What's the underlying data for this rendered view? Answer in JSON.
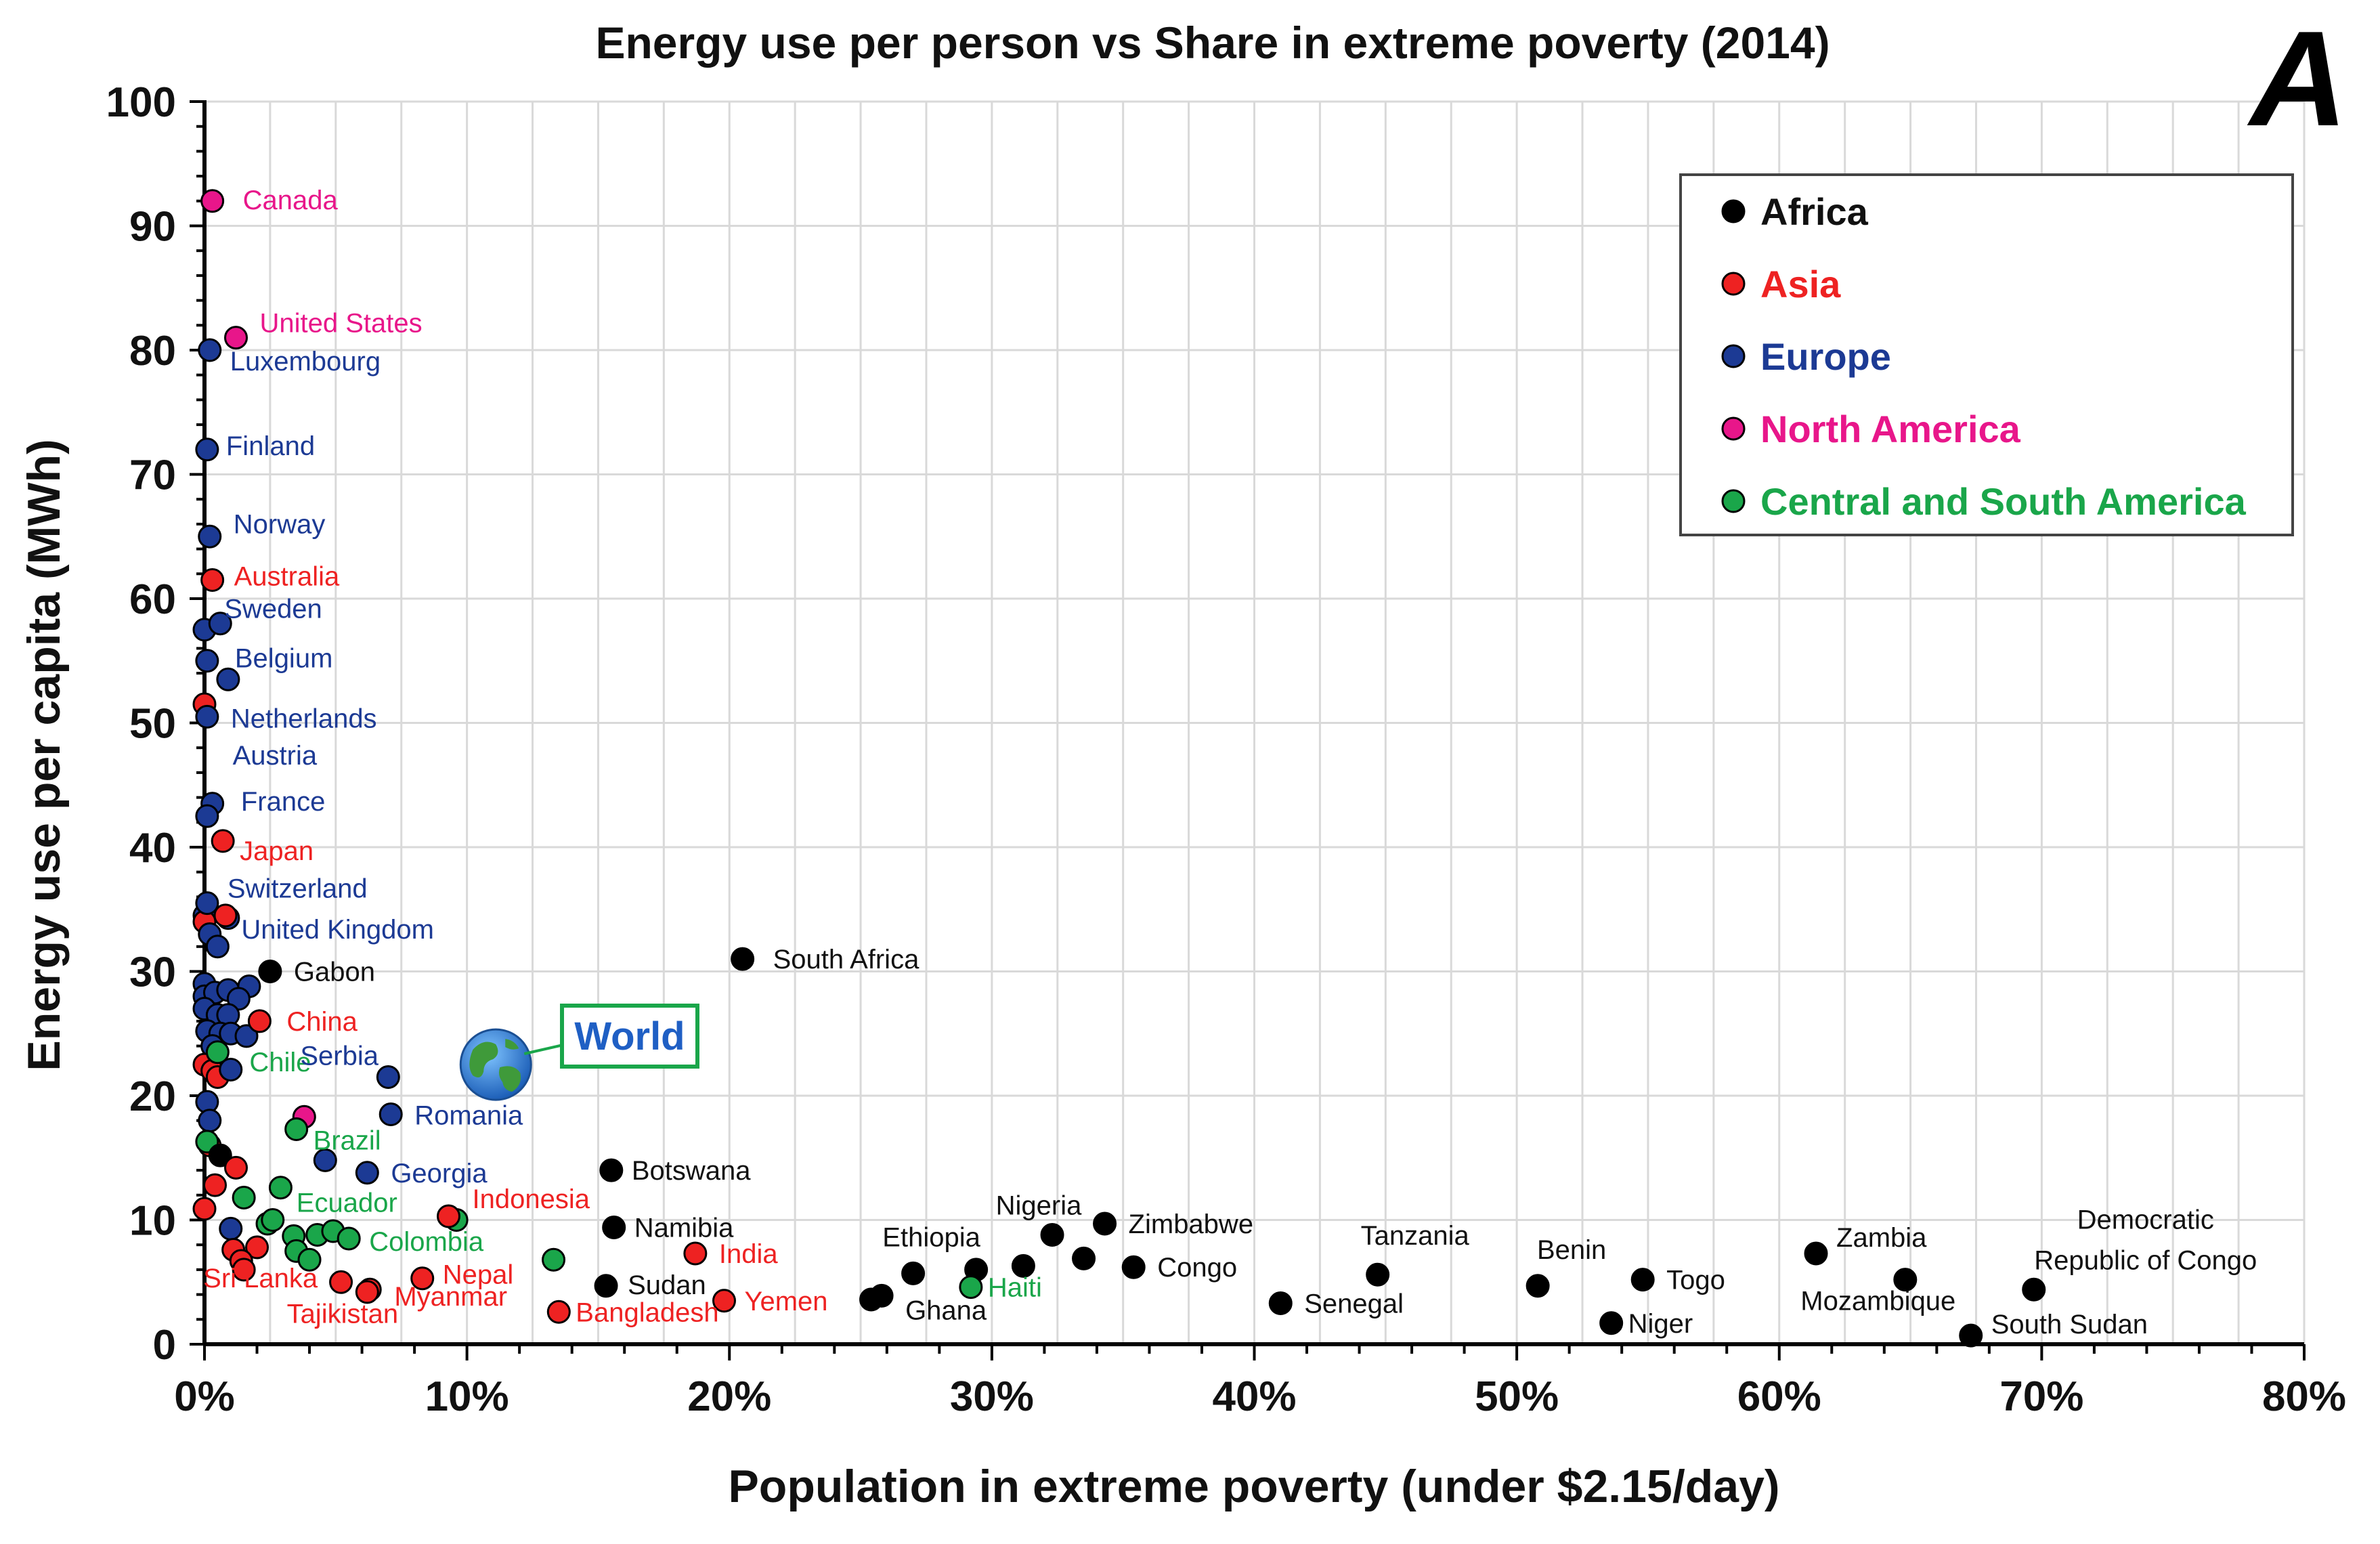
{
  "chart_data": {
    "type": "scatter",
    "title": "Energy use per person vs Share in extreme poverty (2014)",
    "panel_label": "A",
    "xlabel": "Population in extreme poverty (under $2.15/day)",
    "ylabel": "Energy use per capita (MWh)",
    "xlim": [
      0,
      80
    ],
    "ylim": [
      0,
      100
    ],
    "x_ticks": [
      "0%",
      "10%",
      "20%",
      "30%",
      "40%",
      "50%",
      "60%",
      "70%",
      "80%"
    ],
    "y_ticks": [
      "0",
      "10",
      "20",
      "30",
      "40",
      "50",
      "60",
      "70",
      "80",
      "90",
      "100"
    ],
    "grid": true,
    "legend_position": "top-right",
    "groups": [
      {
        "name": "Africa",
        "color": "#000000"
      },
      {
        "name": "Asia",
        "color": "#ee2222"
      },
      {
        "name": "Europe",
        "color": "#1c3a94"
      },
      {
        "name": "North America",
        "color": "#e8168a"
      },
      {
        "name": "Central and South America",
        "color": "#1aa64a"
      }
    ],
    "world": {
      "label": "World",
      "x": 11.1,
      "y": 22.5
    },
    "labeled_points": [
      {
        "label": "Canada",
        "group": "North America",
        "x": 0.3,
        "y": 92
      },
      {
        "label": "United States",
        "group": "North America",
        "x": 1.2,
        "y": 81
      },
      {
        "label": "Luxembourg",
        "group": "Europe",
        "x": 0.2,
        "y": 80
      },
      {
        "label": "Finland",
        "group": "Europe",
        "x": 0.1,
        "y": 72
      },
      {
        "label": "Norway",
        "group": "Europe",
        "x": 0.2,
        "y": 65
      },
      {
        "label": "Australia",
        "group": "Asia",
        "x": 0.3,
        "y": 61.5
      },
      {
        "label": "Sweden",
        "group": "Europe",
        "x": 0.6,
        "y": 58
      },
      {
        "label": "Belgium",
        "group": "Europe",
        "x": 0.9,
        "y": 53.5
      },
      {
        "label": "Netherlands",
        "group": "Europe",
        "x": 0.1,
        "y": 50.5
      },
      {
        "label": "Austria",
        "group": "Europe",
        "x": 0.3,
        "y": 43.5
      },
      {
        "label": "France",
        "group": "Europe",
        "x": 0.1,
        "y": 42.5
      },
      {
        "label": "Japan",
        "group": "Asia",
        "x": 0.7,
        "y": 40.5
      },
      {
        "label": "Switzerland",
        "group": "Europe",
        "x": 0.1,
        "y": 35.5
      },
      {
        "label": "United Kingdom",
        "group": "Europe",
        "x": 0.5,
        "y": 32
      },
      {
        "label": "Gabon",
        "group": "Africa",
        "x": 2.5,
        "y": 30
      },
      {
        "label": "South Africa",
        "group": "Africa",
        "x": 20.5,
        "y": 31
      },
      {
        "label": "China",
        "group": "Asia",
        "x": 2.1,
        "y": 26
      },
      {
        "label": "Chile",
        "group": "Central and South America",
        "x": 0.5,
        "y": 23.5
      },
      {
        "label": "Serbia",
        "group": "Europe",
        "x": 7.0,
        "y": 21.5
      },
      {
        "label": "Romania",
        "group": "Europe",
        "x": 7.1,
        "y": 18.5
      },
      {
        "label": "Brazil",
        "group": "Central and South America",
        "x": 3.5,
        "y": 17.3
      },
      {
        "label": "Georgia",
        "group": "Europe",
        "x": 6.2,
        "y": 13.8
      },
      {
        "label": "Botswana",
        "group": "Africa",
        "x": 15.5,
        "y": 14
      },
      {
        "label": "Indonesia",
        "group": "Asia",
        "x": 9.3,
        "y": 10.3
      },
      {
        "label": "Ecuador",
        "group": "Central and South America",
        "x": 2.6,
        "y": 10
      },
      {
        "label": "Namibia",
        "group": "Africa",
        "x": 15.6,
        "y": 9.4
      },
      {
        "label": "Colombia",
        "group": "Central and South America",
        "x": 5.5,
        "y": 8.5
      },
      {
        "label": "India",
        "group": "Asia",
        "x": 18.7,
        "y": 7.3
      },
      {
        "label": "Nepal",
        "group": "Asia",
        "x": 8.3,
        "y": 5.3
      },
      {
        "label": "Sri Lanka",
        "group": "Asia",
        "x": 1.5,
        "y": 6
      },
      {
        "label": "Myanmar",
        "group": "Asia",
        "x": 6.2,
        "y": 4.2
      },
      {
        "label": "Tajikistan",
        "group": "Asia",
        "x": 5.2,
        "y": 5.0
      },
      {
        "label": "Sudan",
        "group": "Africa",
        "x": 15.3,
        "y": 4.7
      },
      {
        "label": "Bangladesh",
        "group": "Asia",
        "x": 13.5,
        "y": 2.6
      },
      {
        "label": "Yemen",
        "group": "Asia",
        "x": 19.8,
        "y": 3.5
      },
      {
        "label": "Ethiopia",
        "group": "Africa",
        "x": 27.0,
        "y": 5.7
      },
      {
        "label": "Ghana",
        "group": "Africa",
        "x": 25.8,
        "y": 3.9
      },
      {
        "label": "Haiti",
        "group": "Central and South America",
        "x": 29.2,
        "y": 4.6
      },
      {
        "label": "Nigeria",
        "group": "Africa",
        "x": 32.3,
        "y": 8.8
      },
      {
        "label": "Zimbabwe",
        "group": "Africa",
        "x": 34.3,
        "y": 9.7
      },
      {
        "label": "Congo",
        "group": "Africa",
        "x": 35.4,
        "y": 6.2
      },
      {
        "label": "Senegal",
        "group": "Africa",
        "x": 41.0,
        "y": 3.3
      },
      {
        "label": "Tanzania",
        "group": "Africa",
        "x": 44.7,
        "y": 5.6
      },
      {
        "label": "Benin",
        "group": "Africa",
        "x": 50.8,
        "y": 4.7
      },
      {
        "label": "Togo",
        "group": "Africa",
        "x": 54.8,
        "y": 5.2
      },
      {
        "label": "Niger",
        "group": "Africa",
        "x": 53.6,
        "y": 1.7
      },
      {
        "label": "Zambia",
        "group": "Africa",
        "x": 61.4,
        "y": 7.3
      },
      {
        "label": "Mozambique",
        "group": "Africa",
        "x": 64.8,
        "y": 5.2
      },
      {
        "label": "Democratic Republic of Congo",
        "group": "Africa",
        "x": 69.7,
        "y": 4.4
      },
      {
        "label": "South Sudan",
        "group": "Africa",
        "x": 67.3,
        "y": 0.7
      }
    ],
    "unlabeled_points": [
      {
        "group": "Europe",
        "x": 0.0,
        "y": 57.5
      },
      {
        "group": "Europe",
        "x": 0.1,
        "y": 55.0
      },
      {
        "group": "Asia",
        "x": 0.0,
        "y": 51.5
      },
      {
        "group": "Europe",
        "x": 0.0,
        "y": 34.5
      },
      {
        "group": "Asia",
        "x": 0.0,
        "y": 34.0
      },
      {
        "group": "Europe",
        "x": 0.9,
        "y": 34.3
      },
      {
        "group": "Asia",
        "x": 0.8,
        "y": 34.5
      },
      {
        "group": "Europe",
        "x": 0.2,
        "y": 33.0
      },
      {
        "group": "Europe",
        "x": 0.0,
        "y": 29.0
      },
      {
        "group": "Europe",
        "x": 0.0,
        "y": 28.0
      },
      {
        "group": "Europe",
        "x": 0.4,
        "y": 28.3
      },
      {
        "group": "Europe",
        "x": 0.9,
        "y": 28.5
      },
      {
        "group": "Europe",
        "x": 1.7,
        "y": 28.8
      },
      {
        "group": "Europe",
        "x": 1.3,
        "y": 27.8
      },
      {
        "group": "Europe",
        "x": 0.0,
        "y": 27.0
      },
      {
        "group": "Europe",
        "x": 0.5,
        "y": 26.5
      },
      {
        "group": "Europe",
        "x": 0.9,
        "y": 26.5
      },
      {
        "group": "Europe",
        "x": 0.1,
        "y": 25.2
      },
      {
        "group": "Europe",
        "x": 0.6,
        "y": 25.0
      },
      {
        "group": "Europe",
        "x": 1.0,
        "y": 25.0
      },
      {
        "group": "Europe",
        "x": 1.6,
        "y": 24.8
      },
      {
        "group": "Europe",
        "x": 0.3,
        "y": 24.0
      },
      {
        "group": "Asia",
        "x": 0.0,
        "y": 22.5
      },
      {
        "group": "Asia",
        "x": 0.3,
        "y": 22.0
      },
      {
        "group": "Asia",
        "x": 0.5,
        "y": 21.5
      },
      {
        "group": "Europe",
        "x": 1.0,
        "y": 22.1
      },
      {
        "group": "Europe",
        "x": 0.1,
        "y": 19.5
      },
      {
        "group": "Europe",
        "x": 0.2,
        "y": 18.0
      },
      {
        "group": "North America",
        "x": 3.8,
        "y": 18.3
      },
      {
        "group": "Asia",
        "x": 0.2,
        "y": 16.0
      },
      {
        "group": "Central and South America",
        "x": 0.1,
        "y": 16.3
      },
      {
        "group": "Africa",
        "x": 0.6,
        "y": 15.2
      },
      {
        "group": "Europe",
        "x": 4.6,
        "y": 14.8
      },
      {
        "group": "Asia",
        "x": 1.2,
        "y": 14.2
      },
      {
        "group": "Asia",
        "x": 0.4,
        "y": 12.8
      },
      {
        "group": "Central and South America",
        "x": 2.9,
        "y": 12.6
      },
      {
        "group": "Central and South America",
        "x": 1.5,
        "y": 11.8
      },
      {
        "group": "Asia",
        "x": 0.0,
        "y": 10.9
      },
      {
        "group": "Central and South America",
        "x": 2.4,
        "y": 9.7
      },
      {
        "group": "Europe",
        "x": 1.0,
        "y": 9.3
      },
      {
        "group": "Central and South America",
        "x": 3.4,
        "y": 8.7
      },
      {
        "group": "Central and South America",
        "x": 4.3,
        "y": 8.8
      },
      {
        "group": "Central and South America",
        "x": 4.9,
        "y": 9.1
      },
      {
        "group": "Central and South America",
        "x": 9.6,
        "y": 10.0
      },
      {
        "group": "Central and South America",
        "x": 3.5,
        "y": 7.5
      },
      {
        "group": "Central and South America",
        "x": 4.0,
        "y": 6.8
      },
      {
        "group": "Central and South America",
        "x": 13.3,
        "y": 6.8
      },
      {
        "group": "Asia",
        "x": 1.1,
        "y": 7.6
      },
      {
        "group": "Asia",
        "x": 2.0,
        "y": 7.8
      },
      {
        "group": "Asia",
        "x": 1.4,
        "y": 6.7
      },
      {
        "group": "Asia",
        "x": 6.3,
        "y": 4.4
      },
      {
        "group": "Africa",
        "x": 25.4,
        "y": 3.6
      },
      {
        "group": "Africa",
        "x": 29.4,
        "y": 6.0
      },
      {
        "group": "Africa",
        "x": 31.2,
        "y": 6.3
      },
      {
        "group": "Africa",
        "x": 33.5,
        "y": 6.9
      }
    ]
  }
}
